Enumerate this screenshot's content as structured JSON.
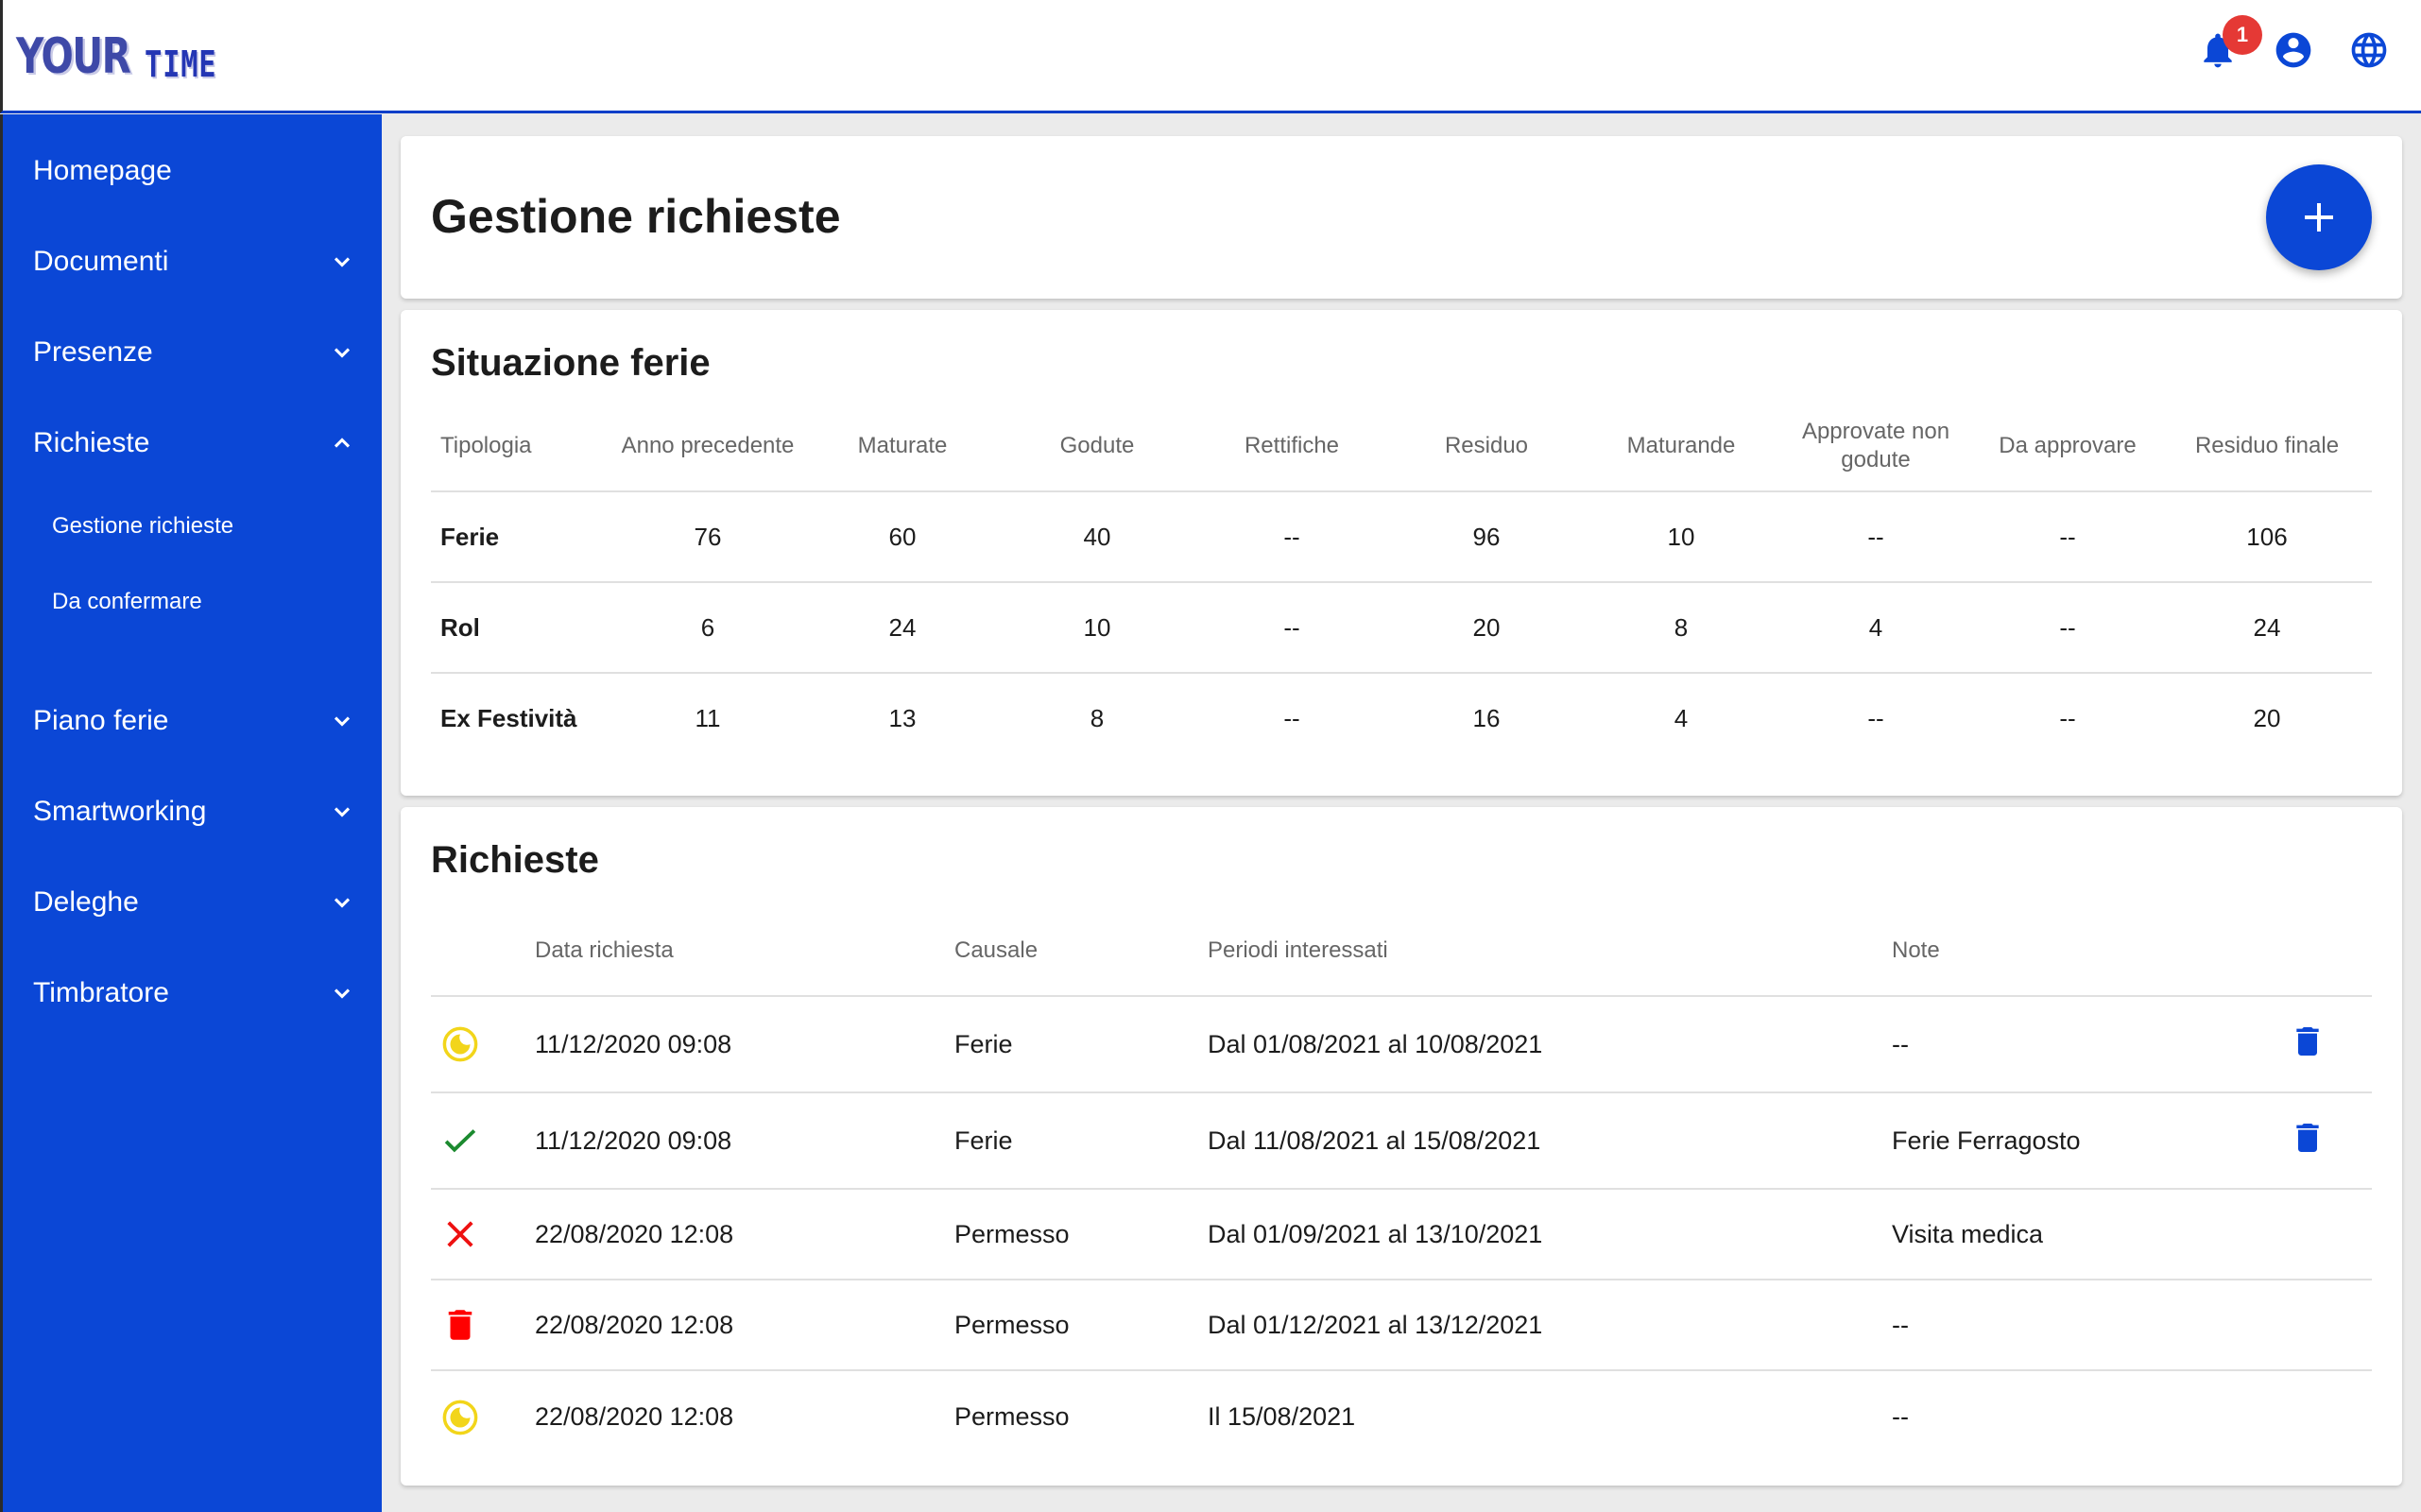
{
  "app": {
    "logo_your": "YOUR",
    "logo_time": "TIME"
  },
  "header": {
    "notification_count": "1",
    "icons": [
      "bell-icon",
      "account-circle-icon",
      "globe-icon"
    ]
  },
  "sidebar": {
    "items": [
      {
        "label": "Homepage"
      },
      {
        "label": "Documenti"
      },
      {
        "label": "Presenze"
      },
      {
        "label": "Richieste"
      },
      {
        "label": "Piano ferie"
      },
      {
        "label": "Smartworking"
      },
      {
        "label": "Deleghe"
      },
      {
        "label": "Timbratore"
      }
    ],
    "sub_items": [
      {
        "label": "Gestione richieste"
      },
      {
        "label": "Da confermare"
      }
    ]
  },
  "page": {
    "title": "Gestione richieste"
  },
  "ferie": {
    "title": "Situazione ferie",
    "columns": [
      "Tipologia",
      "Anno precedente",
      "Maturate",
      "Godute",
      "Rettifiche",
      "Residuo",
      "Maturande",
      "Approvate non godute",
      "Da approvare",
      "Residuo finale"
    ],
    "rows": [
      [
        "Ferie",
        "76",
        "60",
        "40",
        "--",
        "96",
        "10",
        "--",
        "--",
        "106"
      ],
      [
        "Rol",
        "6",
        "24",
        "10",
        "--",
        "20",
        "8",
        "4",
        "--",
        "24"
      ],
      [
        "Ex Festività",
        "11",
        "13",
        "8",
        "--",
        "16",
        "4",
        "--",
        "--",
        "20"
      ]
    ]
  },
  "richieste": {
    "title": "Richieste",
    "columns": [
      "Data richiesta",
      "Causale",
      "Periodi interessati",
      "Note"
    ],
    "rows": [
      {
        "status": "pending-icon",
        "data": "11/12/2020 09:08",
        "causale": "Ferie",
        "periodi": "Dal 01/08/2021 al 10/08/2021",
        "note": "--",
        "deletable": true
      },
      {
        "status": "approved-check-icon",
        "data": "11/12/2020 09:08",
        "causale": "Ferie",
        "periodi": "Dal 11/08/2021 al 15/08/2021",
        "note": "Ferie Ferragosto",
        "deletable": true
      },
      {
        "status": "rejected-x-icon",
        "data": "22/08/2020 12:08",
        "causale": "Permesso",
        "periodi": "Dal 01/09/2021 al 13/10/2021",
        "note": "Visita medica",
        "deletable": false
      },
      {
        "status": "deleted-trash-icon",
        "data": "22/08/2020 12:08",
        "causale": "Permesso",
        "periodi": "Dal 01/12/2021 al 13/12/2021",
        "note": "--",
        "deletable": false
      },
      {
        "status": "pending-icon",
        "data": "22/08/2020 12:08",
        "causale": "Permesso",
        "periodi": "Il 15/08/2021",
        "note": "--",
        "deletable": false
      }
    ]
  },
  "colors": {
    "primary": "#0b47d6",
    "pending": "#f2d51a",
    "approved": "#1b8a2f",
    "rejected": "#e11",
    "badge": "#e53935"
  }
}
